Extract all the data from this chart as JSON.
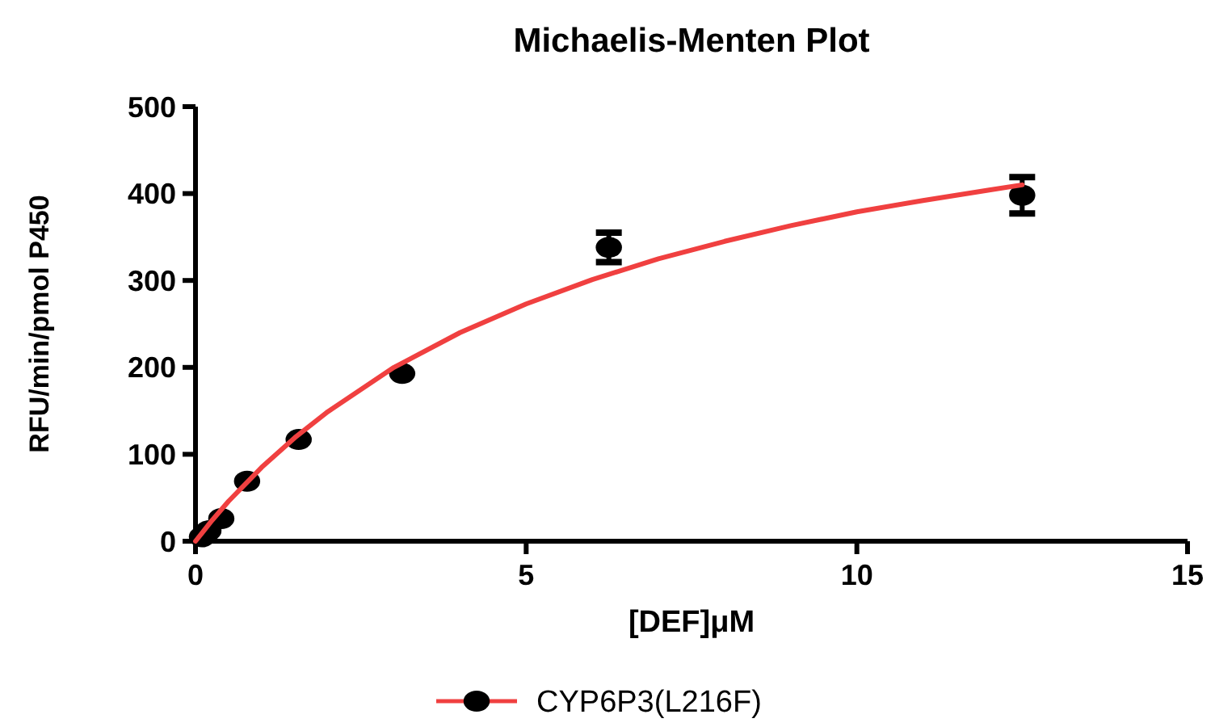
{
  "chart_data": {
    "type": "scatter",
    "title": "Michaelis-Menten Plot",
    "xlabel": "[DEF]μM",
    "ylabel": "RFU/min/pmol P450",
    "xlim": [
      0,
      15
    ],
    "xticks": [
      0,
      5,
      10,
      15
    ],
    "ylim": [
      0,
      500
    ],
    "yticks": [
      0,
      100,
      200,
      300,
      400,
      500
    ],
    "grid": false,
    "legend": "bottom",
    "series": [
      {
        "type": "line",
        "color": "#f04040",
        "x": [
          0,
          0.25,
          0.5,
          1,
          1.5,
          2,
          3,
          4,
          5,
          6,
          7,
          8,
          9,
          10,
          11,
          12,
          12.5
        ],
        "values": [
          0,
          24,
          46,
          85,
          119,
          149,
          200,
          240,
          273,
          301,
          325,
          345,
          363,
          379,
          392,
          404,
          410
        ],
        "marker": "none",
        "line_style": "solid"
      },
      {
        "name": "CYP6P3(L216F)",
        "color": "#000000",
        "marker": "circle",
        "x": [
          0.098,
          0.195,
          0.39,
          0.78,
          1.56,
          3.125,
          6.25,
          12.5
        ],
        "values": [
          5,
          12,
          26,
          69,
          117,
          193,
          338,
          398
        ],
        "errors": [
          null,
          null,
          null,
          null,
          null,
          null,
          17,
          21
        ]
      }
    ]
  }
}
